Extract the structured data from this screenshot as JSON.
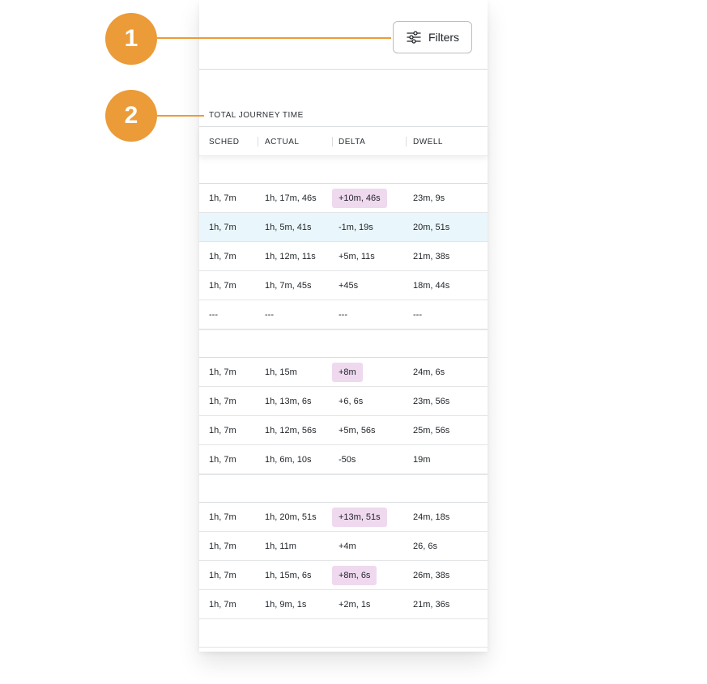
{
  "callouts": [
    "1",
    "2"
  ],
  "filters": {
    "label": "Filters",
    "icon": "sliders-icon"
  },
  "section": {
    "title": "TOTAL JOURNEY TIME"
  },
  "columns": [
    "SCHED",
    "ACTUAL",
    "DELTA",
    "DWELL"
  ],
  "groups": [
    {
      "rows": [
        {
          "sched": "1h, 7m",
          "actual": "1h, 17m, 46s",
          "delta": "+10m, 46s",
          "dwell": "23m, 9s",
          "highlight": true
        },
        {
          "sched": "1h, 7m",
          "actual": "1h, 5m, 41s",
          "delta": "-1m, 19s",
          "dwell": "20m, 51s",
          "selected": true
        },
        {
          "sched": "1h, 7m",
          "actual": "1h, 12m, 11s",
          "delta": "+5m, 11s",
          "dwell": "21m, 38s"
        },
        {
          "sched": "1h, 7m",
          "actual": "1h, 7m, 45s",
          "delta": "+45s",
          "dwell": "18m, 44s"
        },
        {
          "sched": "---",
          "actual": "---",
          "delta": "---",
          "dwell": "---"
        }
      ]
    },
    {
      "rows": [
        {
          "sched": "1h, 7m",
          "actual": "1h, 15m",
          "delta": "+8m",
          "dwell": "24m, 6s",
          "highlight": true
        },
        {
          "sched": "1h, 7m",
          "actual": "1h, 13m, 6s",
          "delta": "+6, 6s",
          "dwell": "23m, 56s"
        },
        {
          "sched": "1h, 7m",
          "actual": "1h, 12m, 56s",
          "delta": "+5m, 56s",
          "dwell": "25m, 56s"
        },
        {
          "sched": "1h, 7m",
          "actual": "1h, 6m, 10s",
          "delta": "-50s",
          "dwell": "19m"
        }
      ]
    },
    {
      "rows": [
        {
          "sched": "1h, 7m",
          "actual": "1h, 20m, 51s",
          "delta": "+13m, 51s",
          "dwell": "24m, 18s",
          "highlight": true
        },
        {
          "sched": "1h, 7m",
          "actual": "1h, 11m",
          "delta": "+4m",
          "dwell": "26, 6s"
        },
        {
          "sched": "1h, 7m",
          "actual": "1h, 15m, 6s",
          "delta": "+8m, 6s",
          "dwell": "26m, 38s",
          "highlight": true
        },
        {
          "sched": "1h, 7m",
          "actual": "1h, 9m, 1s",
          "delta": "+2m, 1s",
          "dwell": "21m, 36s"
        }
      ]
    }
  ],
  "colors": {
    "callout": "#eb9b38",
    "highlight": "#efd9ef",
    "selected": "#e9f7fd"
  }
}
